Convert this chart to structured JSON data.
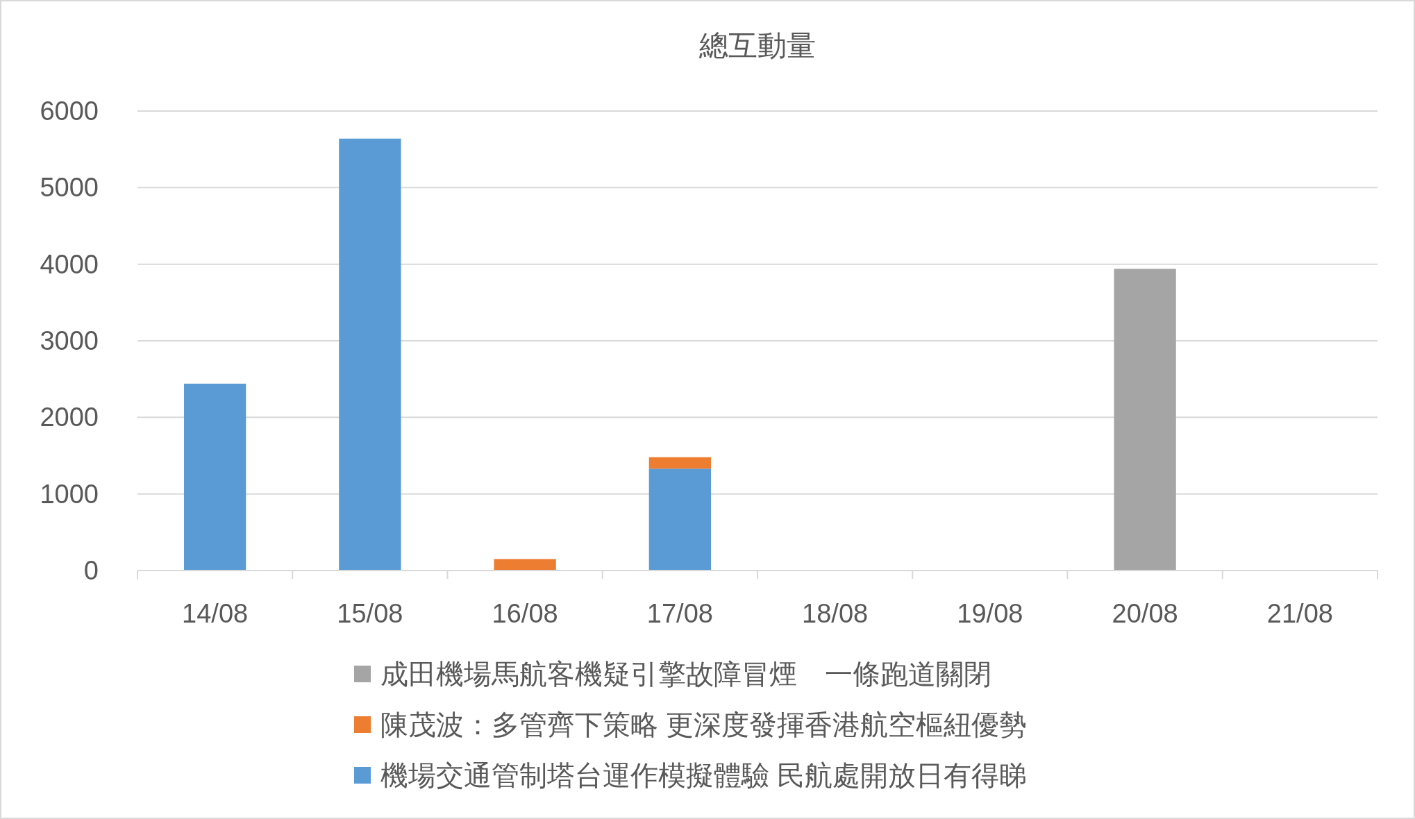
{
  "chart_data": {
    "type": "bar",
    "title": "總互動量",
    "categories": [
      "14/08",
      "15/08",
      "16/08",
      "17/08",
      "18/08",
      "19/08",
      "20/08",
      "21/08"
    ],
    "stacked": true,
    "ylim": [
      0,
      6000
    ],
    "yticks": [
      0,
      1000,
      2000,
      3000,
      4000,
      5000,
      6000
    ],
    "grid": "y",
    "legend": "bottom",
    "series": [
      {
        "name": "機場交通管制塔台運作模擬體驗 民航處開放日有得睇",
        "color": "#5b9bd5",
        "values": [
          2440,
          5640,
          null,
          1330,
          null,
          null,
          null,
          null
        ]
      },
      {
        "name": "陳茂波：多管齊下策略 更深度發揮香港航空樞紐優勢",
        "color": "#ed7d31",
        "values": [
          null,
          null,
          150,
          150,
          null,
          null,
          null,
          null
        ]
      },
      {
        "name": "成田機場馬航客機疑引擎故障冒煙　一條跑道關閉",
        "color": "#a5a5a5",
        "values": [
          null,
          null,
          null,
          null,
          null,
          null,
          3940,
          null
        ]
      }
    ]
  }
}
